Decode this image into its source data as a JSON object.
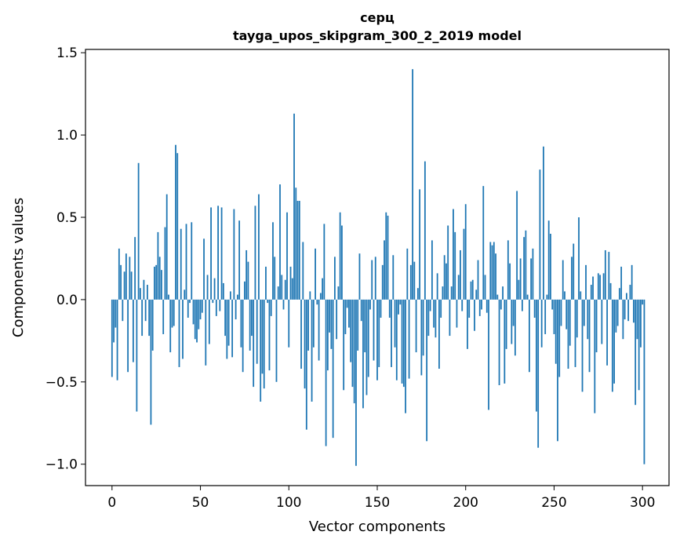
{
  "chart_data": {
    "type": "bar",
    "title_line1": "серц",
    "title_line2": "tayga_upos_skipgram_300_2_2019 model",
    "xlabel": "Vector components",
    "ylabel": "Components values",
    "xlim": [
      -15,
      315
    ],
    "ylim": [
      -1.13,
      1.52
    ],
    "xticks": [
      0,
      50,
      100,
      150,
      200,
      250,
      300
    ],
    "yticks": [
      -1.0,
      -0.5,
      0.0,
      0.5,
      1.0,
      1.5
    ],
    "ytick_labels": [
      "−1.0",
      "−0.5",
      "0.0",
      "0.5",
      "1.0",
      "1.5"
    ],
    "grid": false,
    "bar_color": "#1f77b4",
    "values": [
      -0.47,
      -0.26,
      -0.17,
      -0.49,
      0.31,
      0.21,
      -0.13,
      0.17,
      0.28,
      -0.44,
      0.26,
      0.17,
      -0.38,
      0.38,
      -0.68,
      0.83,
      0.07,
      -0.22,
      0.12,
      -0.13,
      0.09,
      -0.22,
      -0.76,
      -0.31,
      0.2,
      0.21,
      0.41,
      0.26,
      0.18,
      -0.21,
      0.44,
      0.64,
      0.03,
      -0.32,
      -0.17,
      -0.16,
      0.94,
      0.89,
      -0.41,
      0.43,
      -0.36,
      0.06,
      0.46,
      -0.11,
      -0.02,
      0.47,
      -0.15,
      -0.24,
      -0.26,
      -0.18,
      -0.12,
      -0.08,
      0.37,
      -0.4,
      0.15,
      -0.27,
      0.56,
      -0.02,
      0.13,
      -0.1,
      0.57,
      -0.07,
      0.56,
      0.1,
      -0.22,
      -0.36,
      -0.28,
      0.05,
      -0.35,
      0.55,
      -0.12,
      0.03,
      0.48,
      -0.29,
      -0.44,
      0.11,
      0.3,
      0.23,
      -0.31,
      -0.22,
      -0.53,
      0.57,
      -0.39,
      0.64,
      -0.62,
      -0.45,
      -0.54,
      0.2,
      -0.02,
      -0.43,
      -0.1,
      0.47,
      0.26,
      -0.5,
      0.08,
      0.7,
      0.15,
      -0.06,
      0.12,
      0.53,
      -0.29,
      0.2,
      0.13,
      1.13,
      0.68,
      0.6,
      0.6,
      -0.42,
      0.35,
      -0.54,
      -0.79,
      -0.31,
      0.05,
      -0.62,
      -0.29,
      0.31,
      -0.03,
      -0.37,
      0.04,
      0.13,
      0.46,
      -0.89,
      -0.43,
      -0.2,
      -0.3,
      -0.84,
      0.26,
      -0.24,
      0.08,
      0.53,
      0.45,
      -0.55,
      -0.21,
      -0.05,
      -0.17,
      -0.38,
      -0.53,
      -0.63,
      -1.01,
      -0.31,
      0.28,
      -0.13,
      -0.66,
      -0.32,
      -0.58,
      -0.47,
      -0.06,
      0.24,
      -0.37,
      0.26,
      -0.49,
      -0.41,
      -0.11,
      0.21,
      0.36,
      0.53,
      0.51,
      -0.11,
      -0.41,
      0.27,
      -0.29,
      -0.49,
      -0.09,
      -0.03,
      -0.51,
      -0.53,
      -0.69,
      0.31,
      -0.48,
      0.21,
      1.4,
      0.23,
      -0.32,
      0.07,
      0.67,
      -0.46,
      -0.34,
      0.84,
      -0.86,
      -0.22,
      -0.07,
      0.36,
      -0.17,
      -0.23,
      0.16,
      -0.42,
      -0.11,
      0.08,
      0.27,
      0.22,
      0.45,
      -0.22,
      0.08,
      0.55,
      0.41,
      -0.17,
      0.15,
      0.3,
      -0.07,
      0.43,
      0.58,
      -0.3,
      -0.11,
      0.11,
      0.12,
      -0.19,
      0.06,
      0.24,
      -0.1,
      -0.06,
      0.69,
      0.15,
      -0.08,
      -0.67,
      0.35,
      0.33,
      0.35,
      0.28,
      0.03,
      -0.52,
      -0.06,
      0.08,
      -0.51,
      -0.3,
      0.36,
      0.22,
      -0.27,
      -0.16,
      -0.34,
      0.66,
      0.12,
      0.25,
      -0.07,
      0.38,
      0.42,
      0.03,
      -0.44,
      0.25,
      0.31,
      -0.11,
      -0.68,
      -0.9,
      0.79,
      -0.29,
      0.93,
      -0.21,
      0.03,
      0.48,
      0.4,
      -0.06,
      -0.21,
      -0.39,
      -0.86,
      -0.47,
      -0.16,
      0.24,
      0.05,
      -0.18,
      -0.42,
      -0.28,
      0.26,
      0.34,
      -0.41,
      -0.23,
      0.5,
      0.05,
      -0.56,
      -0.16,
      0.21,
      -0.24,
      -0.44,
      0.09,
      0.14,
      -0.69,
      -0.32,
      0.16,
      0.15,
      -0.27,
      0.16,
      0.3,
      -0.4,
      0.29,
      0.1,
      -0.56,
      -0.51,
      -0.2,
      -0.16,
      0.07,
      0.2,
      -0.24,
      -0.12,
      0.04,
      -0.13,
      0.09,
      0.21,
      -0.14,
      -0.64,
      -0.24,
      -0.55,
      -0.29,
      -0.03,
      -1.0
    ]
  }
}
